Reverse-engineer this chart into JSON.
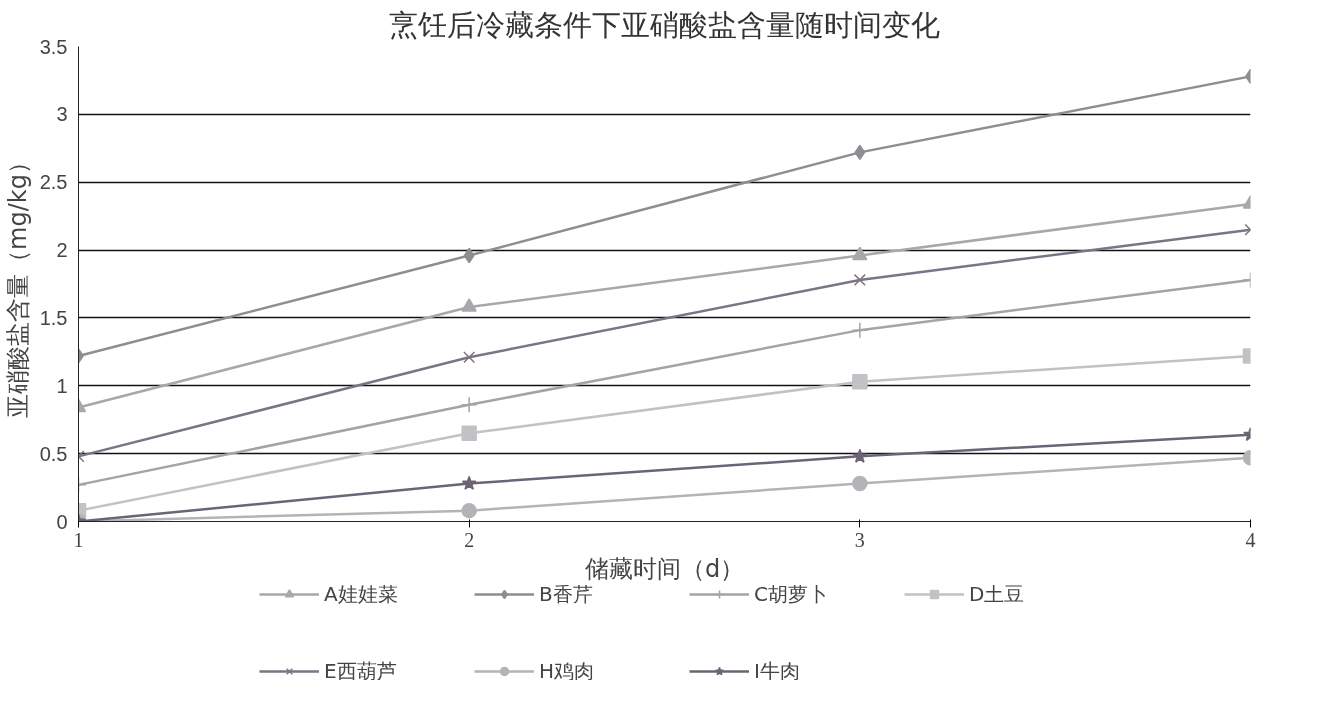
{
  "chart_data": {
    "type": "line",
    "title": "烹饪后冷藏条件下亚硝酸盐含量随时间变化",
    "xlabel": "储藏时间（d）",
    "ylabel": "亚硝酸盐含量（mg/kg）",
    "x": [
      1,
      2,
      3,
      4
    ],
    "xlim": [
      1,
      4
    ],
    "xticks": [
      1,
      2,
      3,
      4
    ],
    "ylim": [
      0,
      3.5
    ],
    "yticks": [
      0,
      0.5,
      1,
      1.5,
      2,
      2.5,
      3,
      3.5
    ],
    "grid": "y",
    "legend": "bottom",
    "series": [
      {
        "name": "A娃娃菜",
        "color": "#a8a8ac",
        "marker": "triangle",
        "values": [
          0.84,
          1.58,
          1.96,
          2.34
        ]
      },
      {
        "name": "B香芹",
        "color": "#8e8e92",
        "marker": "diamond",
        "values": [
          1.22,
          1.96,
          2.72,
          3.28
        ]
      },
      {
        "name": "C胡萝卜",
        "color": "#a4a4a8",
        "marker": "cross",
        "values": [
          0.27,
          0.86,
          1.41,
          1.78
        ]
      },
      {
        "name": "D土豆",
        "color": "#c2c2c6",
        "marker": "square",
        "values": [
          0.08,
          0.65,
          1.03,
          1.22
        ]
      },
      {
        "name": "E西葫芦",
        "color": "#7c7484",
        "marker": "x",
        "values": [
          0.48,
          1.21,
          1.78,
          2.15
        ]
      },
      {
        "name": "H鸡肉",
        "color": "#b4b4b8",
        "marker": "circle",
        "values": [
          0,
          0.08,
          0.28,
          0.47
        ]
      },
      {
        "name": "I牛肉",
        "color": "#6c6474",
        "marker": "star",
        "values": [
          0,
          0.28,
          0.48,
          0.64
        ]
      }
    ]
  }
}
